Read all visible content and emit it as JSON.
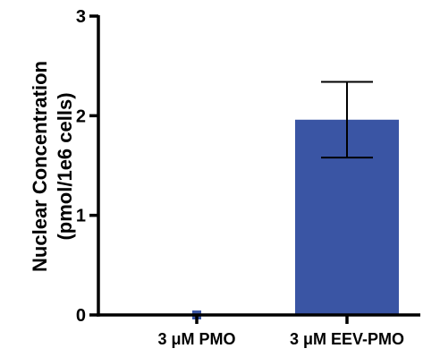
{
  "chart_data": {
    "type": "bar",
    "title": "",
    "xlabel": "",
    "ylabel_lines": [
      "Nuclear Concentration",
      "(pmol/1e6 cells)"
    ],
    "categories": [
      "3 μM PMO",
      "3 μM EEV-PMO"
    ],
    "values": [
      0.01,
      1.96
    ],
    "error": [
      null,
      0.38
    ],
    "ylim": [
      0,
      3
    ],
    "yticks": [
      0,
      1,
      2,
      3
    ],
    "ytick_labels": [
      "0",
      "1",
      "2",
      "3"
    ],
    "grid": false,
    "legend": "none"
  },
  "colors": {
    "bar": "#3A55A4",
    "axis": "#000000",
    "text": "#000000"
  }
}
